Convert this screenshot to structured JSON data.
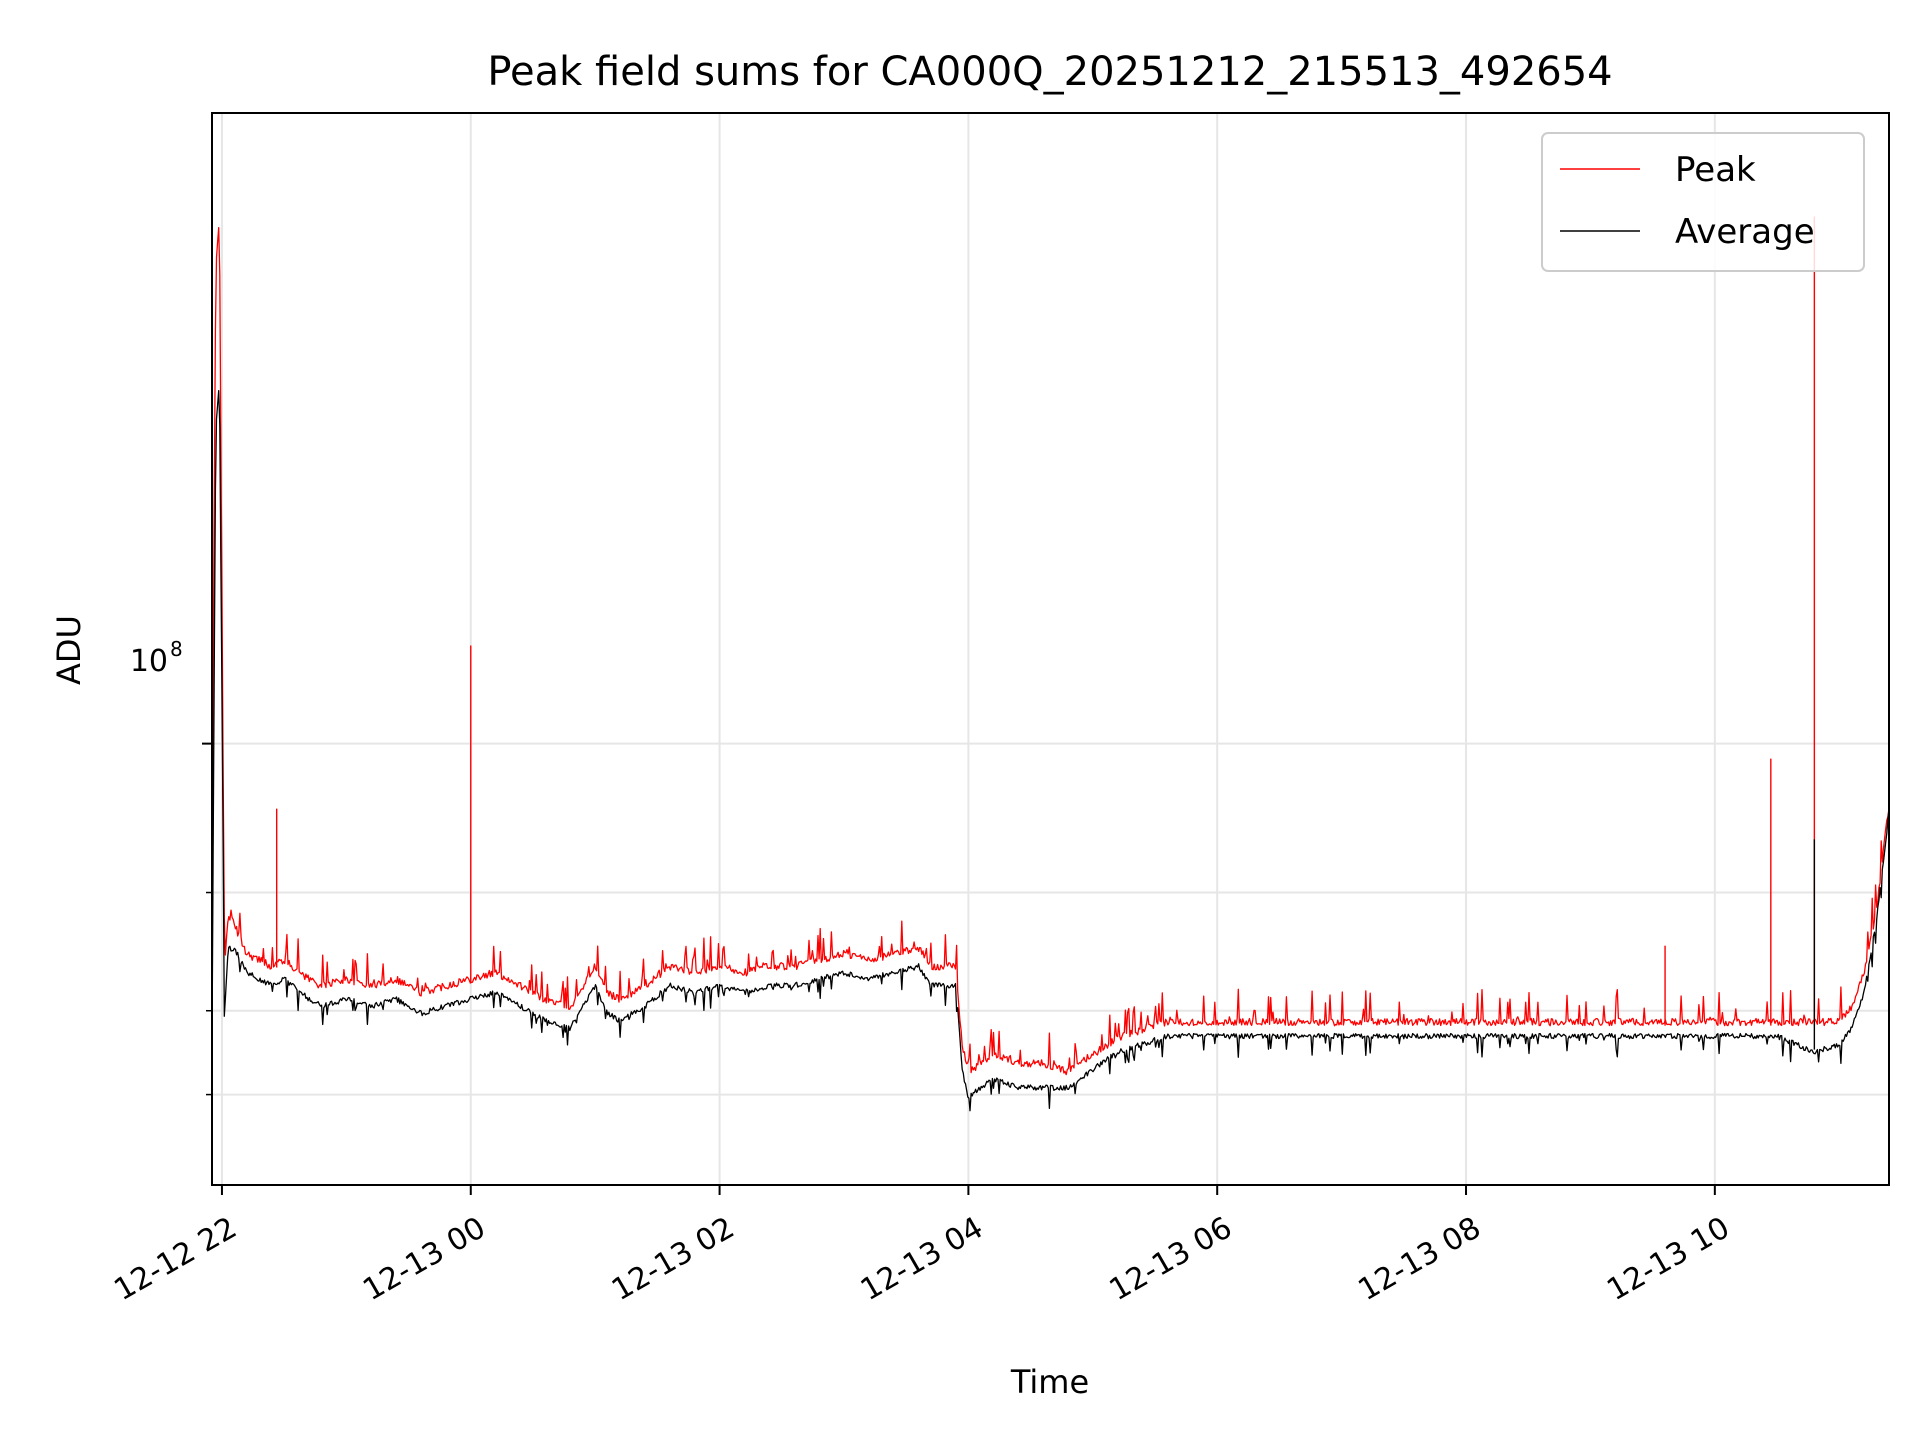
{
  "chart_data": {
    "type": "line",
    "title": "Peak field sums for CA000Q_20251212_215513_492654",
    "xlabel": "Time",
    "ylabel": "ADU",
    "yscale": "log",
    "ylim": [
      22000000,
      870000000
    ],
    "xlim_hours": [
      -2.08,
      11.4
    ],
    "y_major_tick_label": "10",
    "y_major_tick_exp": "8",
    "y_major_tick_value": 100000000,
    "y_minor_ticks": [
      30000000,
      40000000,
      60000000
    ],
    "x_ticks": [
      {
        "hour": -2,
        "label": "12-12 22"
      },
      {
        "hour": 0,
        "label": "12-13 00"
      },
      {
        "hour": 2,
        "label": "12-13 02"
      },
      {
        "hour": 4,
        "label": "12-13 04"
      },
      {
        "hour": 6,
        "label": "12-13 06"
      },
      {
        "hour": 8,
        "label": "12-13 08"
      },
      {
        "hour": 10,
        "label": "12-13 10"
      }
    ],
    "grid": true,
    "legend_position": "top-right",
    "series": [
      {
        "name": "Peak",
        "color": "#ff0000",
        "hours": [
          -2.08,
          -2.05,
          -2.02,
          -1.98,
          -1.95,
          -1.9,
          -1.8,
          -1.6,
          -1.5,
          -1.3,
          -1.2,
          -1.0,
          -0.8,
          -0.6,
          -0.4,
          -0.2,
          0.0,
          0.2,
          0.4,
          0.6,
          0.8,
          1.0,
          1.1,
          1.2,
          1.4,
          1.6,
          1.8,
          2.0,
          2.2,
          2.4,
          2.6,
          2.8,
          3.0,
          3.2,
          3.4,
          3.6,
          3.7,
          3.9,
          3.95,
          4.0,
          4.2,
          4.4,
          4.6,
          4.8,
          5.0,
          5.2,
          5.4,
          5.6,
          5.8,
          6.0,
          6.5,
          7.0,
          7.5,
          8.0,
          8.5,
          9.0,
          9.5,
          10.0,
          10.3,
          10.5,
          10.8,
          11.0,
          11.1,
          11.2,
          11.3,
          11.4
        ],
        "values": [
          60000000,
          500000000,
          600000000,
          45000000,
          55000000,
          53000000,
          48000000,
          46000000,
          47000000,
          44000000,
          43000000,
          44000000,
          43000000,
          44000000,
          42000000,
          43000000,
          44000000,
          45000000,
          43000000,
          41000000,
          40000000,
          46000000,
          42000000,
          41000000,
          43000000,
          46000000,
          45000000,
          46000000,
          45000000,
          46000000,
          46000000,
          47000000,
          48000000,
          47000000,
          48000000,
          49000000,
          46000000,
          46000000,
          35000000,
          32000000,
          34000000,
          33000000,
          33000000,
          32000000,
          34000000,
          36000000,
          37000000,
          38000000,
          38000000,
          38000000,
          38000000,
          38000000,
          38000000,
          38000000,
          38000000,
          38000000,
          38000000,
          38000000,
          38000000,
          38000000,
          38000000,
          38000000,
          40000000,
          45000000,
          56000000,
          80000000
        ]
      },
      {
        "name": "Average",
        "color": "#000000",
        "hours": [
          -2.08,
          -2.05,
          -2.02,
          -1.98,
          -1.95,
          -1.9,
          -1.8,
          -1.6,
          -1.5,
          -1.3,
          -1.2,
          -1.0,
          -0.8,
          -0.6,
          -0.4,
          -0.2,
          0.0,
          0.2,
          0.4,
          0.6,
          0.8,
          1.0,
          1.1,
          1.2,
          1.4,
          1.6,
          1.8,
          2.0,
          2.2,
          2.4,
          2.6,
          2.8,
          3.0,
          3.2,
          3.4,
          3.6,
          3.7,
          3.9,
          3.95,
          4.0,
          4.2,
          4.4,
          4.6,
          4.8,
          5.0,
          5.2,
          5.4,
          5.6,
          5.8,
          6.0,
          6.5,
          7.0,
          7.5,
          8.0,
          8.5,
          9.0,
          9.5,
          10.0,
          10.3,
          10.5,
          10.8,
          11.0,
          11.1,
          11.2,
          11.3,
          11.4
        ],
        "values": [
          36000000,
          300000000,
          350000000,
          40000000,
          50000000,
          50000000,
          46000000,
          44000000,
          45000000,
          42000000,
          41000000,
          42000000,
          41000000,
          42000000,
          40000000,
          41000000,
          42000000,
          43000000,
          41000000,
          39000000,
          38000000,
          44000000,
          40000000,
          39000000,
          41000000,
          44000000,
          43000000,
          44000000,
          43000000,
          44000000,
          44000000,
          45000000,
          46000000,
          45000000,
          46000000,
          47000000,
          44000000,
          44000000,
          33000000,
          30000000,
          32000000,
          31000000,
          31000000,
          31000000,
          33000000,
          35000000,
          36000000,
          37000000,
          37000000,
          37000000,
          37000000,
          37000000,
          37000000,
          37000000,
          37000000,
          37000000,
          37000000,
          37000000,
          37000000,
          37000000,
          35000000,
          36000000,
          38000000,
          43000000,
          55000000,
          80000000
        ]
      }
    ],
    "spikes": [
      {
        "series": "Peak",
        "hour": -1.56,
        "value": 80000000
      },
      {
        "series": "Peak",
        "hour": 0.0,
        "value": 140000000
      },
      {
        "series": "Peak",
        "hour": 9.6,
        "value": 50000000
      },
      {
        "series": "Peak",
        "hour": 10.45,
        "value": 95000000
      },
      {
        "series": "Peak",
        "hour": 10.8,
        "value": 610000000
      },
      {
        "series": "Average",
        "hour": 10.8,
        "value": 72000000
      }
    ]
  }
}
